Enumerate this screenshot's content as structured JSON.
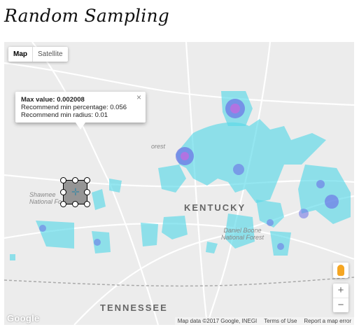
{
  "page": {
    "title": "Random Sampling"
  },
  "map_type": {
    "map_label": "Map",
    "satellite_label": "Satellite"
  },
  "labels": {
    "state_kentucky": "KENTUCKY",
    "state_tennessee": "TENNESSEE",
    "forest_daniel_boone": "Daniel Boone\nNational Forest",
    "forest_shawnee": "Shawnee\nNational Fo",
    "forest_upper": "orest"
  },
  "info_window": {
    "max_value": "Max value: 0.002008",
    "recommend_percentage": "Recommend min percentage: 0.056",
    "recommend_radius": "Recommend min radius: 0.01",
    "close_symbol": "×"
  },
  "controls": {
    "zoom_in": "+",
    "zoom_out": "−"
  },
  "footer": {
    "logo": "Google",
    "attribution": "Map data ©2017 Google, INEGI",
    "terms": "Terms of Use",
    "report": "Report a map error"
  },
  "colors": {
    "heat_low": "#5ad8e8",
    "heat_mid": "#6b6fe6",
    "heat_high": "#c06be0",
    "map_bg": "#ececec"
  }
}
